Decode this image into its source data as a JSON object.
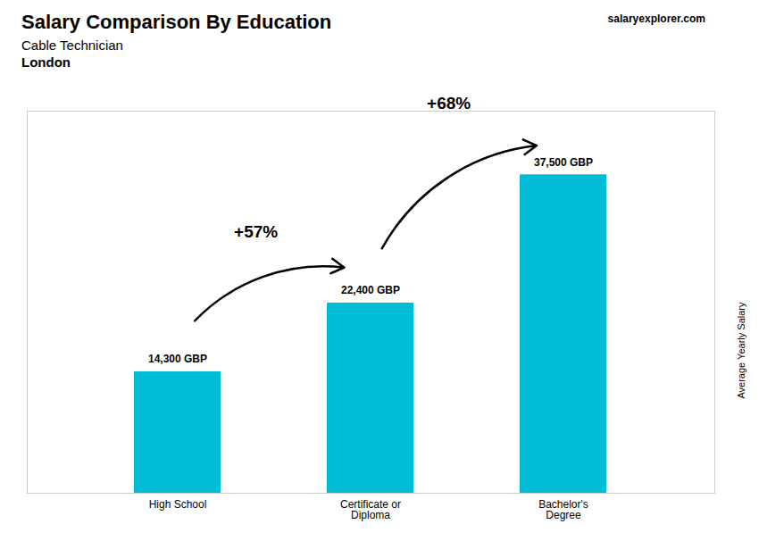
{
  "chart_data": {
    "type": "bar",
    "title": "Salary Comparison By Education",
    "subtitle": [
      "Cable Technician",
      "London"
    ],
    "ylabel": "Average Yearly Salary",
    "categories": [
      "High School",
      "Certificate or\nDiploma",
      "Bachelor's\nDegree"
    ],
    "values": [
      14300,
      22400,
      37500
    ],
    "value_labels": [
      "14,300 GBP",
      "22,400 GBP",
      "37,500 GBP"
    ],
    "data_labels": true,
    "color": "#00bcd4",
    "ylim": [
      0,
      45000
    ],
    "tick_labels": "x",
    "grid": false,
    "annotations": [
      {
        "text": "+57%",
        "from": "High School",
        "to": "Certificate or\nDiploma"
      },
      {
        "text": "+68%",
        "from": "Certificate or\nDiploma",
        "to": "Bachelor's\nDegree"
      },
      {
        "text": "salaryexplorer.com"
      }
    ]
  }
}
